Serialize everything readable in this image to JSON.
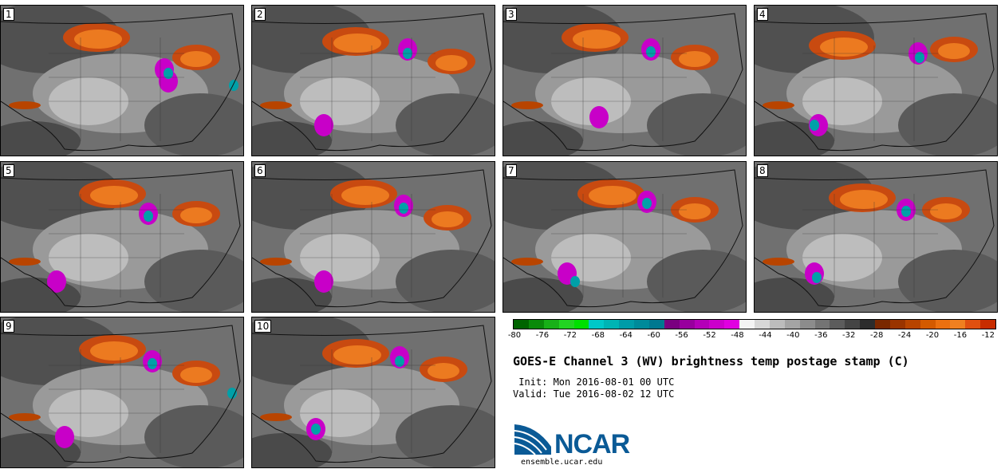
{
  "panels": [
    {
      "label": "1"
    },
    {
      "label": "2"
    },
    {
      "label": "3"
    },
    {
      "label": "4"
    },
    {
      "label": "5"
    },
    {
      "label": "6"
    },
    {
      "label": "7"
    },
    {
      "label": "8"
    },
    {
      "label": "9"
    },
    {
      "label": "10"
    }
  ],
  "colorbar": {
    "colors": [
      "#006400",
      "#0a8a0a",
      "#18b018",
      "#22d422",
      "#00e000",
      "#00c8c8",
      "#00b4b4",
      "#009ca8",
      "#008a9a",
      "#007890",
      "#7a0080",
      "#98009e",
      "#b400b8",
      "#cc00cc",
      "#e000e0",
      "#f4f4f4",
      "#d8d8d8",
      "#bcbcbc",
      "#a4a4a4",
      "#8c8c8c",
      "#747474",
      "#5c5c5c",
      "#444444",
      "#2c2c2c",
      "#7a2800",
      "#9a3400",
      "#b84400",
      "#d45a00",
      "#ec7010",
      "#f08020",
      "#e05010",
      "#c82c00"
    ],
    "ticks": [
      "-80",
      "-76",
      "-72",
      "-68",
      "-64",
      "-60",
      "-56",
      "-52",
      "-48",
      "-44",
      "-40",
      "-36",
      "-32",
      "-28",
      "-24",
      "-20",
      "-16",
      "-12"
    ]
  },
  "title": "GOES-E Channel 3 (WV) brightness temp postage stamp (C)",
  "init": " Init: Mon 2016-08-01 00 UTC",
  "valid": "Valid: Tue 2016-08-02 12 UTC",
  "logo_text": "NCAR",
  "site": "ensemble.ucar.edu"
}
